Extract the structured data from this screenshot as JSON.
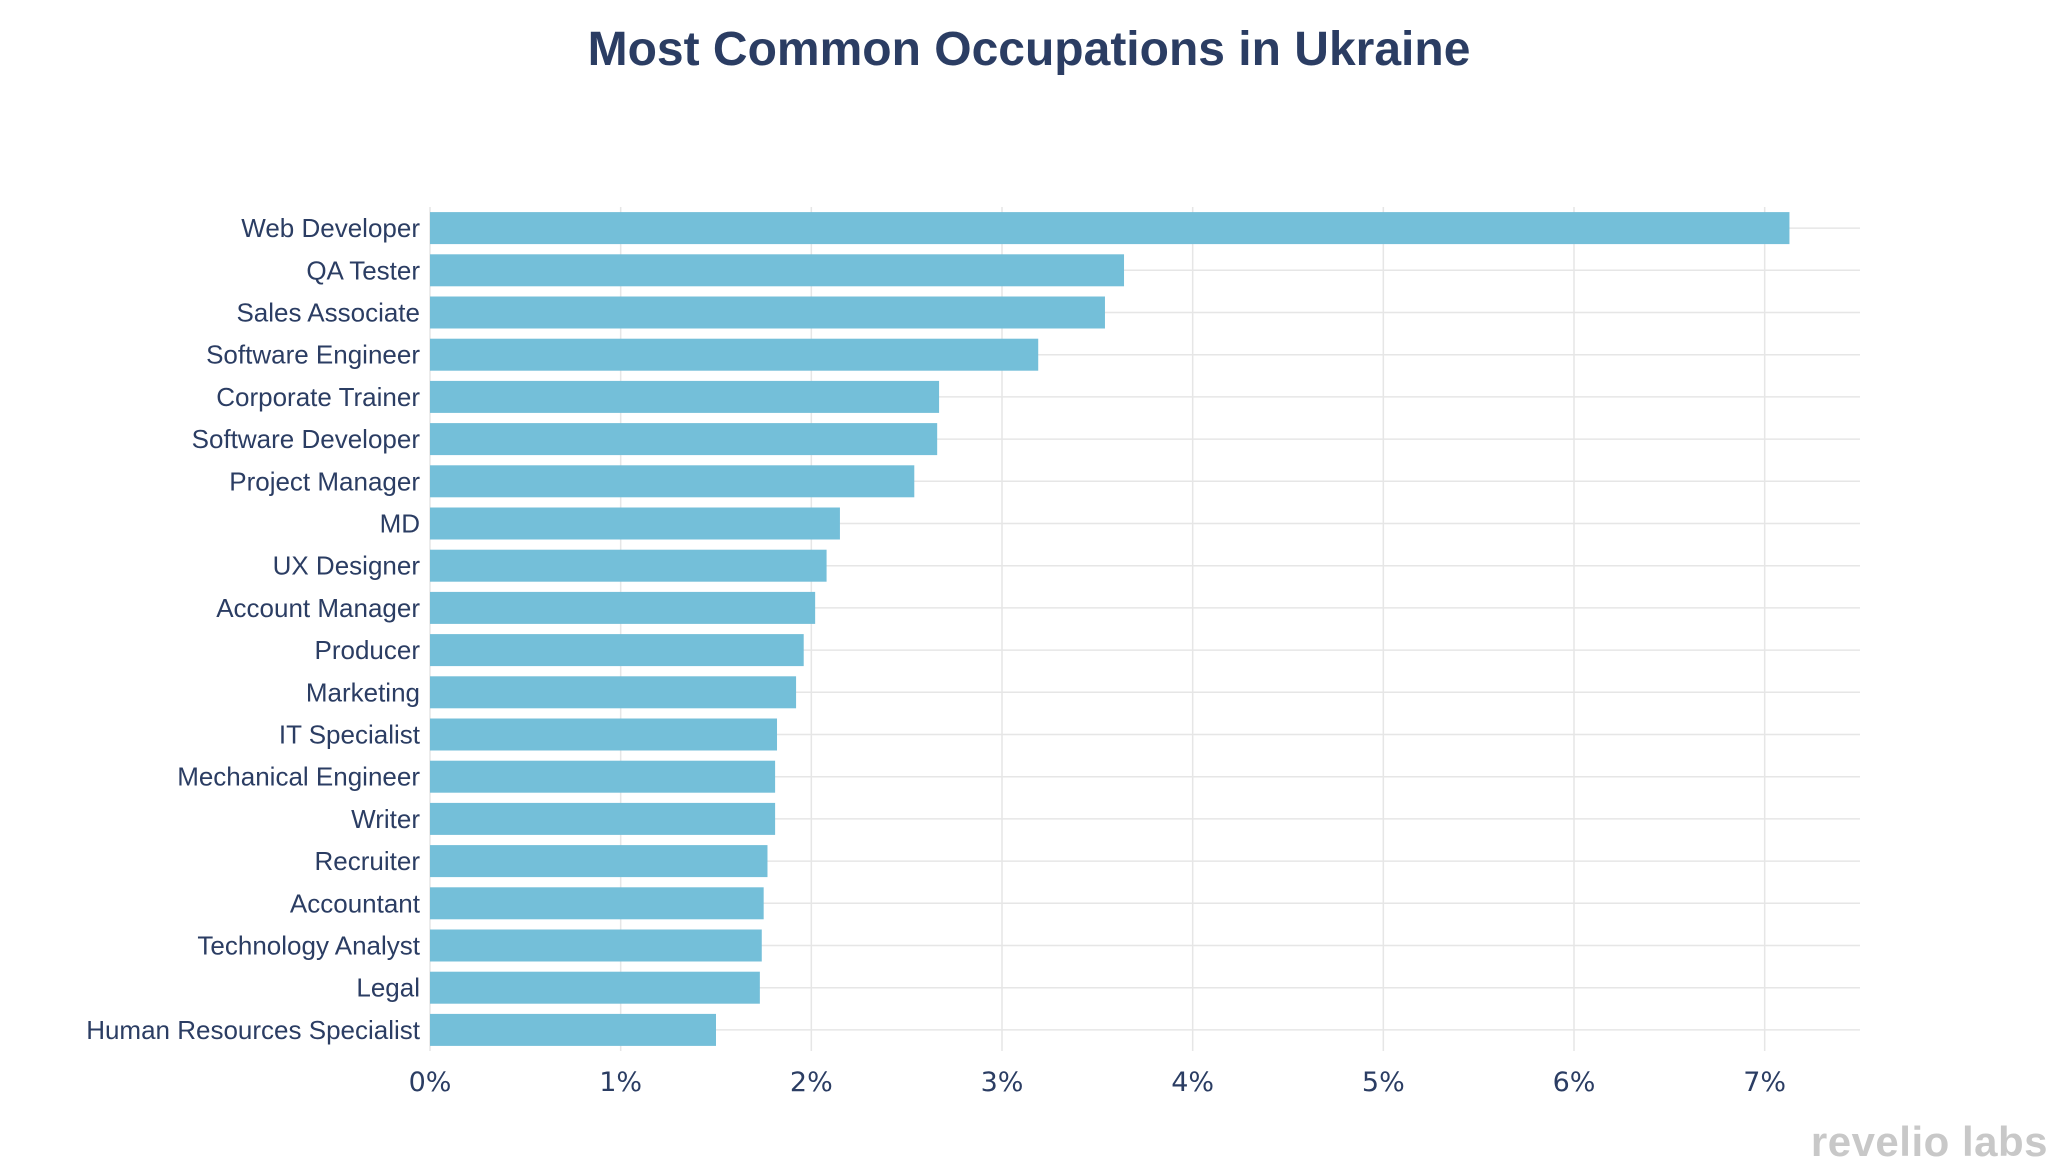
{
  "chart_data": {
    "type": "bar",
    "orientation": "horizontal",
    "title": "Most Common Occupations in Ukraine",
    "categories": [
      "Web Developer",
      "QA Tester",
      "Sales Associate",
      "Software Engineer",
      "Corporate Trainer",
      "Software Developer",
      "Project Manager",
      "MD",
      "UX Designer",
      "Account Manager",
      "Producer",
      "Marketing",
      "IT Specialist",
      "Mechanical Engineer",
      "Writer",
      "Recruiter",
      "Accountant",
      "Technology Analyst",
      "Legal",
      "Human Resources Specialist"
    ],
    "values": [
      7.13,
      3.64,
      3.54,
      3.19,
      2.67,
      2.66,
      2.54,
      2.15,
      2.08,
      2.02,
      1.96,
      1.92,
      1.82,
      1.81,
      1.81,
      1.77,
      1.75,
      1.74,
      1.73,
      1.5
    ],
    "xlabel": "",
    "ylabel": "",
    "xlim": [
      0,
      7.5
    ],
    "xticks": [
      0,
      1,
      2,
      3,
      4,
      5,
      6,
      7
    ],
    "xtick_labels": [
      "0%",
      "1%",
      "2%",
      "3%",
      "4%",
      "5%",
      "6%",
      "7%"
    ],
    "grid": true,
    "legend": "none",
    "colors": {
      "bar": "#74bfd9",
      "grid": "#e6e6e6",
      "text": "#2b3d63",
      "title": "#2b3d63",
      "logo": "#c8c8c8"
    }
  },
  "brand": {
    "logo_text": "revelio labs"
  }
}
